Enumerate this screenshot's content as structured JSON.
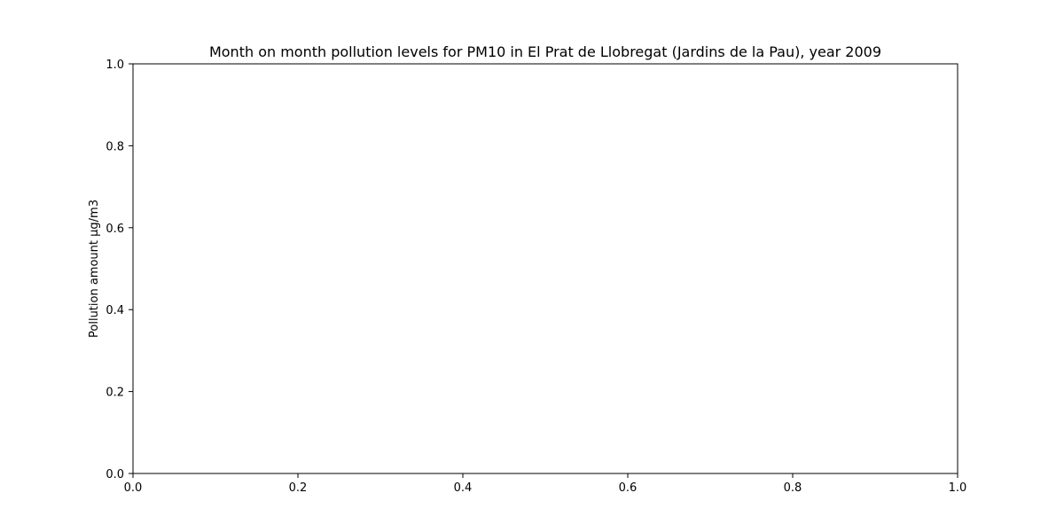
{
  "chart_data": {
    "type": "line",
    "title": "Month on month pollution levels for PM10 in El Prat de Llobregat (Jardins de la Pau), year 2009",
    "xlabel": "",
    "ylabel": "Pollution amount µg/m3",
    "xlim": [
      0.0,
      1.0
    ],
    "ylim": [
      0.0,
      1.0
    ],
    "x_ticks": [
      "0.0",
      "0.2",
      "0.4",
      "0.6",
      "0.8",
      "1.0"
    ],
    "y_ticks": [
      "0.0",
      "0.2",
      "0.4",
      "0.6",
      "0.8",
      "1.0"
    ],
    "series": [],
    "grid": false,
    "legend": "none"
  }
}
